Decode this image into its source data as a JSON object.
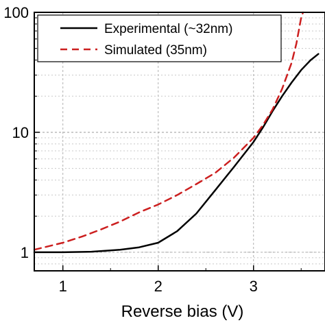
{
  "chart_data": {
    "type": "line",
    "xlabel": "Reverse bias (V)",
    "ylabel": "",
    "xlim": [
      0.7,
      3.75
    ],
    "ylim": [
      0.7,
      100
    ],
    "yscale": "log",
    "grid": true,
    "legend_position": "top",
    "x_ticks": [
      1,
      2,
      3
    ],
    "y_ticks": [
      1,
      10,
      100
    ],
    "series": [
      {
        "name": "Experimental (~32nm)",
        "color": "#000000",
        "style": "solid",
        "points": [
          [
            0.7,
            1.0
          ],
          [
            1.0,
            1.0
          ],
          [
            1.3,
            1.01
          ],
          [
            1.6,
            1.05
          ],
          [
            1.8,
            1.1
          ],
          [
            2.0,
            1.2
          ],
          [
            2.2,
            1.5
          ],
          [
            2.4,
            2.1
          ],
          [
            2.6,
            3.3
          ],
          [
            2.8,
            5.2
          ],
          [
            3.0,
            8.3
          ],
          [
            3.1,
            11
          ],
          [
            3.2,
            15
          ],
          [
            3.3,
            20
          ],
          [
            3.4,
            26
          ],
          [
            3.5,
            33
          ],
          [
            3.6,
            40
          ],
          [
            3.68,
            45
          ]
        ]
      },
      {
        "name": "Simulated (35nm)",
        "color": "#cc1f1f",
        "style": "dashed",
        "points": [
          [
            0.7,
            1.05
          ],
          [
            1.0,
            1.2
          ],
          [
            1.2,
            1.35
          ],
          [
            1.4,
            1.55
          ],
          [
            1.6,
            1.8
          ],
          [
            1.8,
            2.15
          ],
          [
            2.0,
            2.5
          ],
          [
            2.2,
            3.0
          ],
          [
            2.4,
            3.7
          ],
          [
            2.6,
            4.6
          ],
          [
            2.8,
            6.2
          ],
          [
            3.0,
            9.0
          ],
          [
            3.1,
            11.5
          ],
          [
            3.2,
            15.5
          ],
          [
            3.3,
            23
          ],
          [
            3.4,
            38
          ],
          [
            3.45,
            55
          ],
          [
            3.5,
            90
          ],
          [
            3.52,
            110
          ]
        ]
      }
    ]
  }
}
